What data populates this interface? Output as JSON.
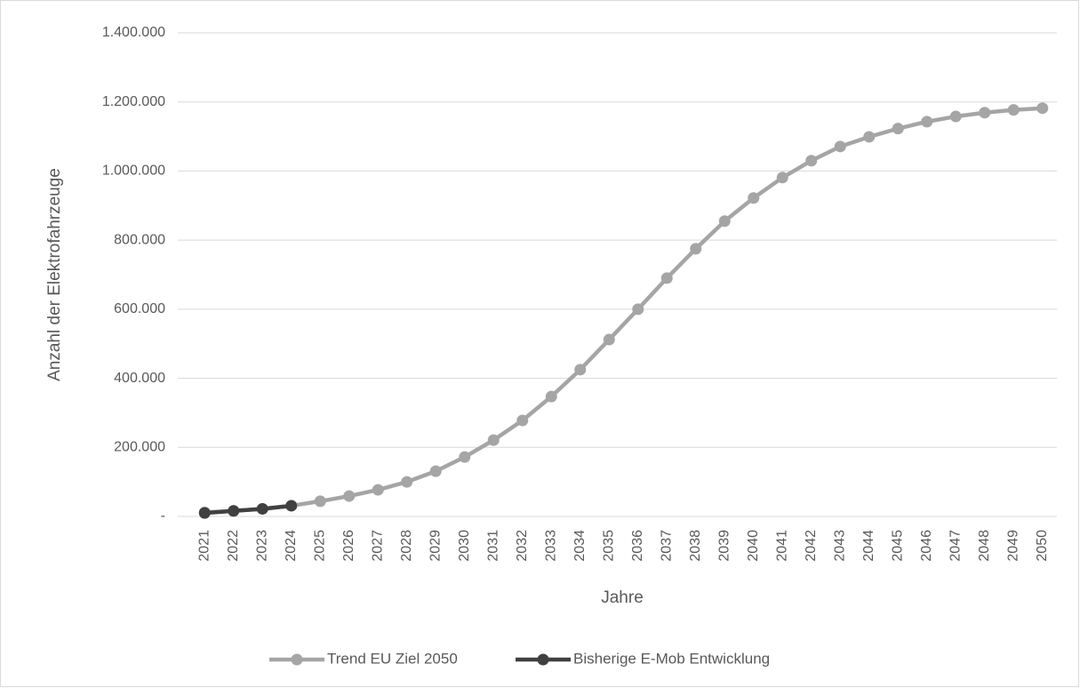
{
  "chart_data": {
    "type": "line",
    "x_label": "Jahre",
    "y_label": "Anzahl der Elektrofahrzeuge",
    "categories": [
      "2021",
      "2022",
      "2023",
      "2024",
      "2025",
      "2026",
      "2027",
      "2028",
      "2029",
      "2030",
      "2031",
      "2032",
      "2033",
      "2034",
      "2035",
      "2036",
      "2037",
      "2038",
      "2039",
      "2040",
      "2041",
      "2042",
      "2043",
      "2044",
      "2045",
      "2046",
      "2047",
      "2048",
      "2049",
      "2050"
    ],
    "series": [
      {
        "name": "Trend EU Ziel 2050",
        "color": "#a5a5a5",
        "values": [
          12000,
          16000,
          22000,
          31000,
          44000,
          59000,
          77000,
          100000,
          131000,
          172000,
          221000,
          278000,
          347000,
          425000,
          512000,
          600000,
          690000,
          775000,
          855000,
          922000,
          981000,
          1030000,
          1071000,
          1099000,
          1123000,
          1143000,
          1158000,
          1169000,
          1177000,
          1182000
        ]
      },
      {
        "name": "Bisherige E-Mob Entwicklung",
        "color": "#404040",
        "values": [
          10000,
          16000,
          22000,
          31000,
          null,
          null,
          null,
          null,
          null,
          null,
          null,
          null,
          null,
          null,
          null,
          null,
          null,
          null,
          null,
          null,
          null,
          null,
          null,
          null,
          null,
          null,
          null,
          null,
          null,
          null
        ]
      }
    ],
    "ylim": [
      0,
      1400000
    ],
    "yticks": [
      {
        "value": 0,
        "label": "-"
      },
      {
        "value": 200000,
        "label": "200.000"
      },
      {
        "value": 400000,
        "label": "400.000"
      },
      {
        "value": 600000,
        "label": "600.000"
      },
      {
        "value": 800000,
        "label": "800.000"
      },
      {
        "value": 1000000,
        "label": "1.000.000"
      },
      {
        "value": 1200000,
        "label": "1.200.000"
      },
      {
        "value": 1400000,
        "label": "1.400.000"
      }
    ],
    "grid": true,
    "legend": "bottom"
  }
}
